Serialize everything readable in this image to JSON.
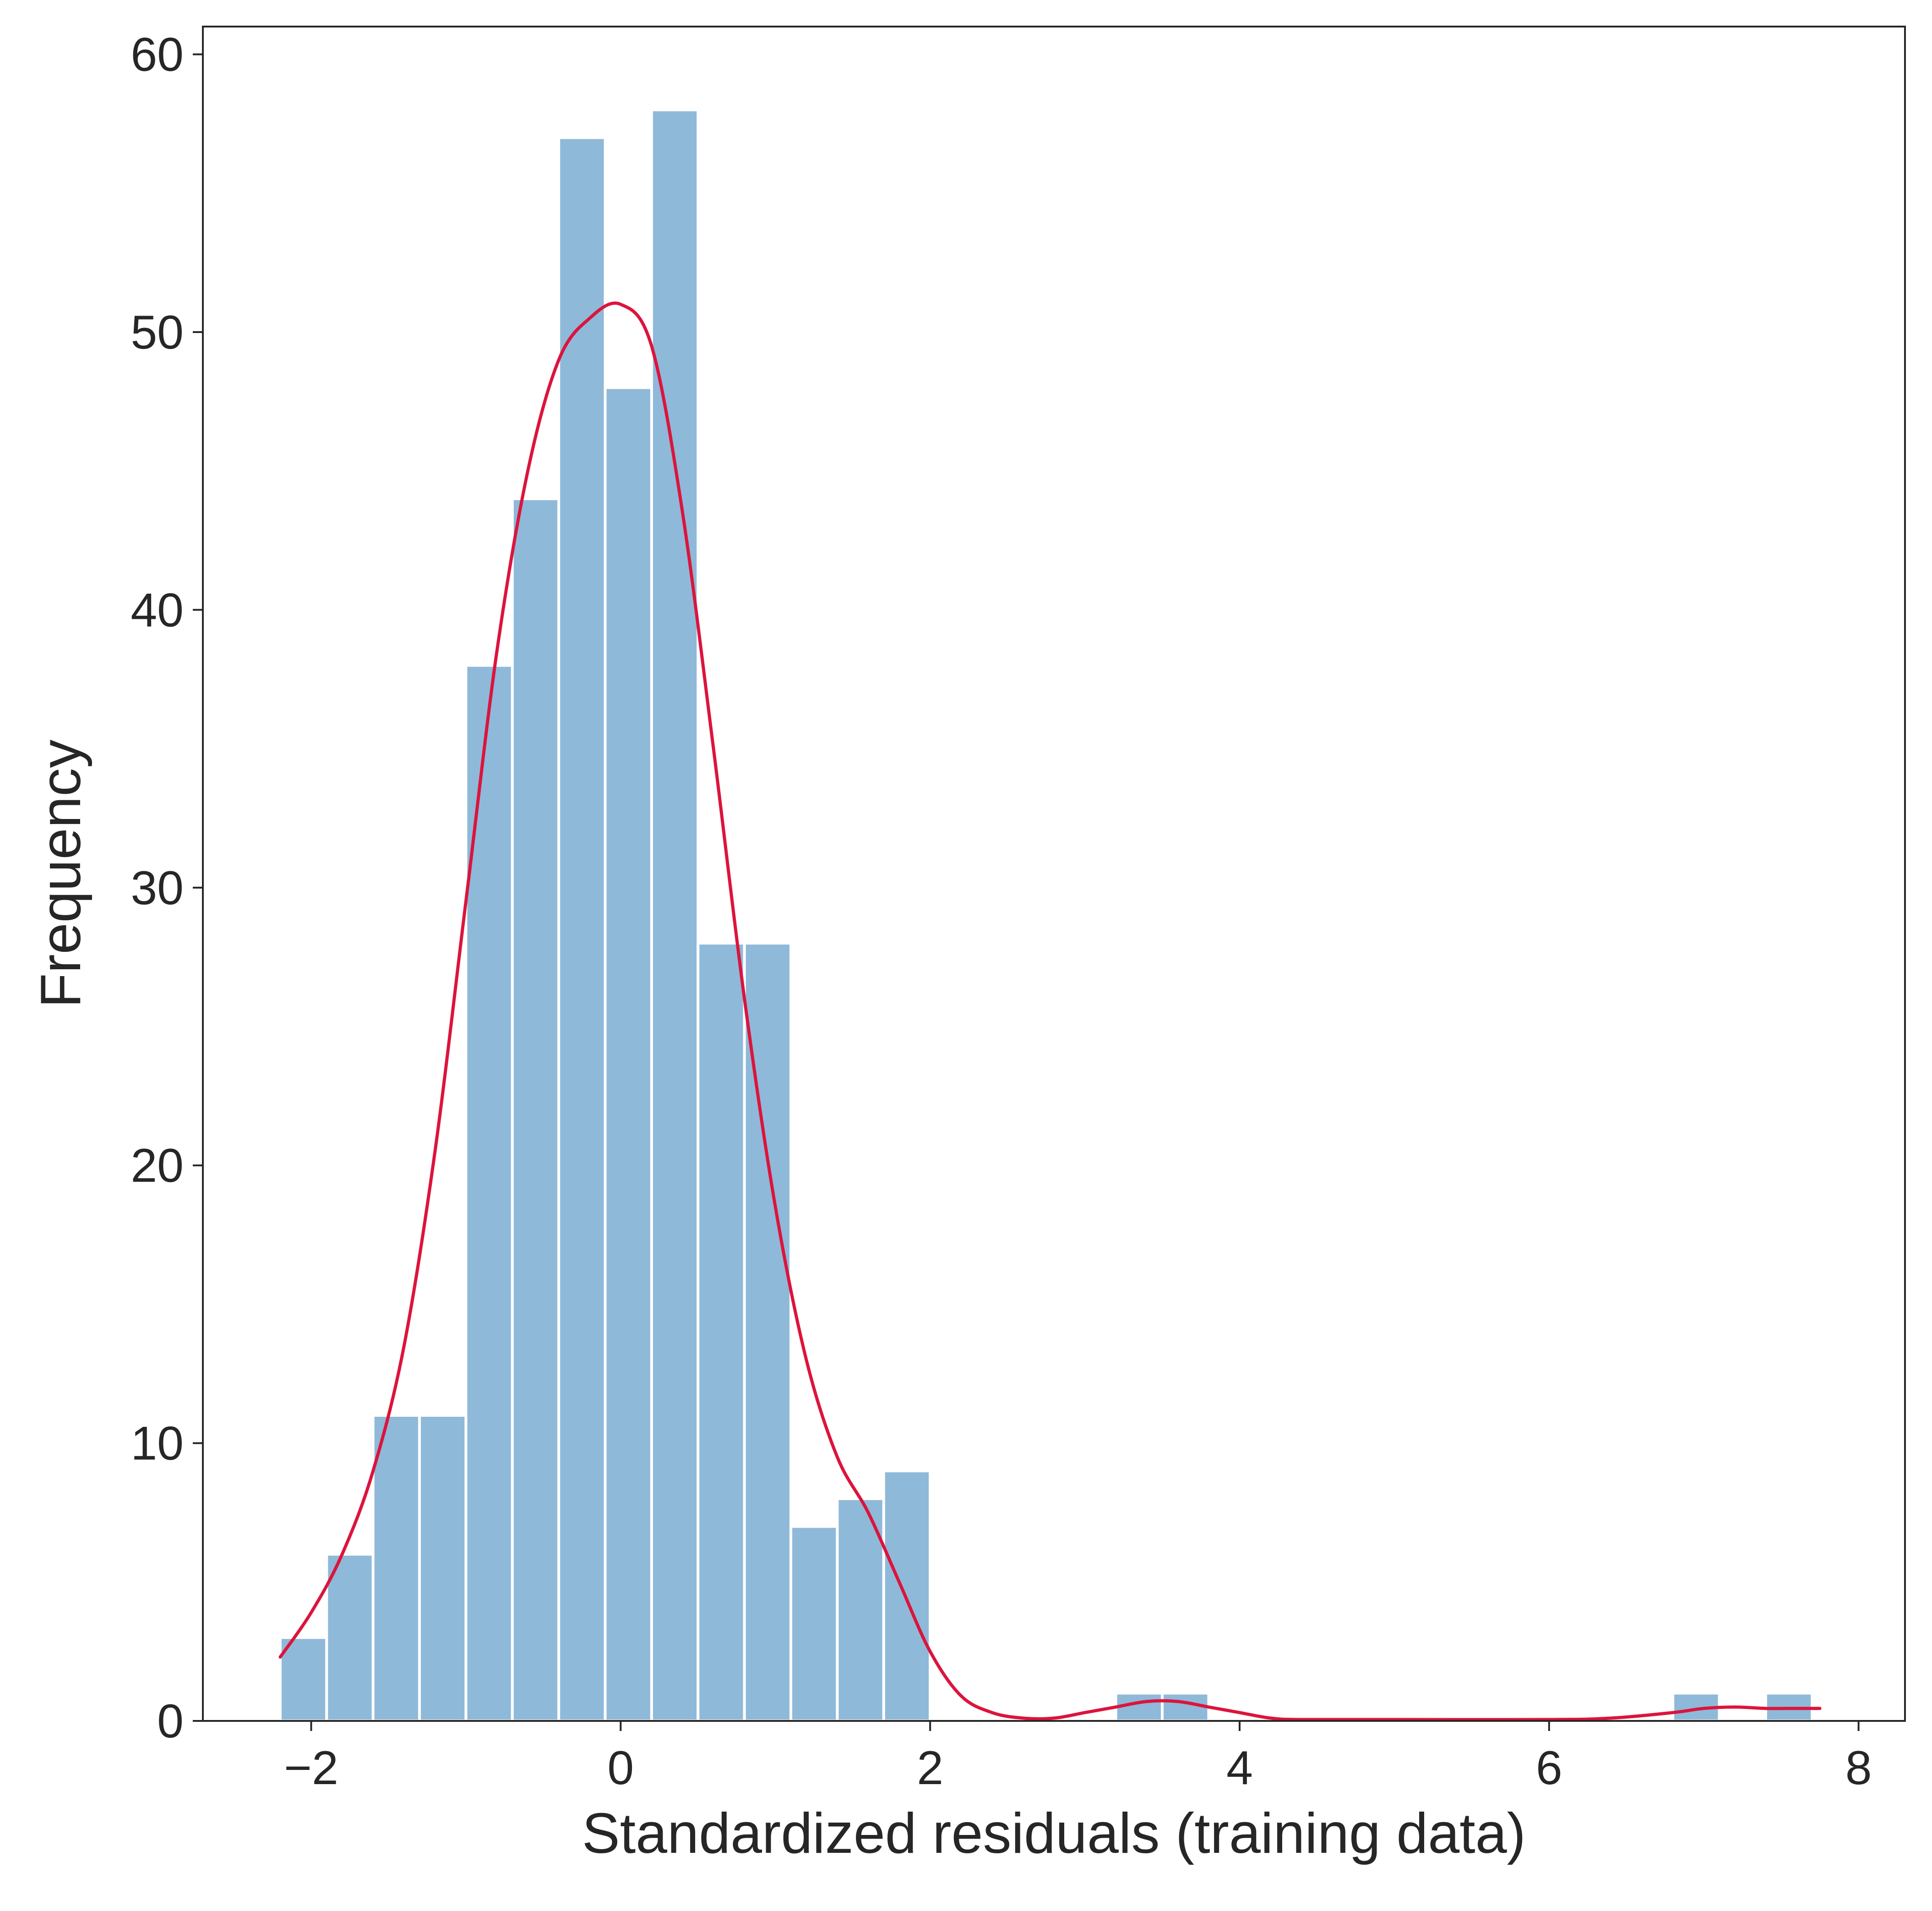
{
  "chart_data": {
    "type": "bar",
    "title": "",
    "xlabel": "Standardized residuals (training data)",
    "ylabel": "Frequency",
    "xlim": [
      -2.7,
      8.3
    ],
    "ylim": [
      0,
      61
    ],
    "x_ticks": [
      -2,
      0,
      2,
      4,
      6,
      8
    ],
    "x_tick_labels": [
      "−2",
      "0",
      "2",
      "4",
      "6",
      "8"
    ],
    "y_ticks": [
      0,
      10,
      20,
      30,
      40,
      50,
      60
    ],
    "y_tick_labels": [
      "0",
      "10",
      "20",
      "30",
      "40",
      "50",
      "60"
    ],
    "grid": false,
    "bin_width": 0.3,
    "bins": [
      {
        "start": -2.2,
        "count": 3
      },
      {
        "start": -1.9,
        "count": 6
      },
      {
        "start": -1.6,
        "count": 11
      },
      {
        "start": -1.3,
        "count": 11
      },
      {
        "start": -1.0,
        "count": 38
      },
      {
        "start": -0.7,
        "count": 44
      },
      {
        "start": -0.4,
        "count": 57
      },
      {
        "start": -0.1,
        "count": 48
      },
      {
        "start": 0.2,
        "count": 58
      },
      {
        "start": 0.5,
        "count": 28
      },
      {
        "start": 0.8,
        "count": 28
      },
      {
        "start": 1.1,
        "count": 7
      },
      {
        "start": 1.4,
        "count": 8
      },
      {
        "start": 1.7,
        "count": 9
      },
      {
        "start": 3.2,
        "count": 1
      },
      {
        "start": 3.5,
        "count": 1
      },
      {
        "start": 6.8,
        "count": 1
      },
      {
        "start": 7.4,
        "count": 1
      }
    ],
    "kde_curve": {
      "x": [
        -2.2,
        -2.0,
        -1.8,
        -1.6,
        -1.4,
        -1.2,
        -1.0,
        -0.8,
        -0.6,
        -0.4,
        -0.2,
        0.0,
        0.2,
        0.4,
        0.6,
        0.8,
        1.0,
        1.2,
        1.4,
        1.6,
        1.8,
        2.0,
        2.2,
        2.4,
        2.6,
        2.8,
        3.0,
        3.2,
        3.4,
        3.6,
        3.8,
        4.0,
        4.2,
        4.4,
        5.0,
        6.0,
        6.4,
        6.8,
        7.0,
        7.2,
        7.4,
        7.6,
        7.75
      ],
      "y": [
        2.3,
        3.9,
        6.0,
        9.0,
        13.5,
        20.5,
        29.5,
        38.5,
        45.0,
        49.0,
        50.5,
        51.0,
        49.5,
        43.5,
        35.0,
        26.0,
        18.5,
        13.0,
        9.5,
        7.5,
        5.0,
        2.5,
        0.9,
        0.3,
        0.1,
        0.1,
        0.3,
        0.5,
        0.7,
        0.7,
        0.5,
        0.3,
        0.1,
        0.05,
        0.05,
        0.05,
        0.1,
        0.3,
        0.45,
        0.5,
        0.45,
        0.45,
        0.45
      ]
    },
    "colors": {
      "bars": "#8fb9d9",
      "bar_edge": "#ffffff",
      "kde": "#dc143c",
      "axis": "#262626"
    }
  }
}
